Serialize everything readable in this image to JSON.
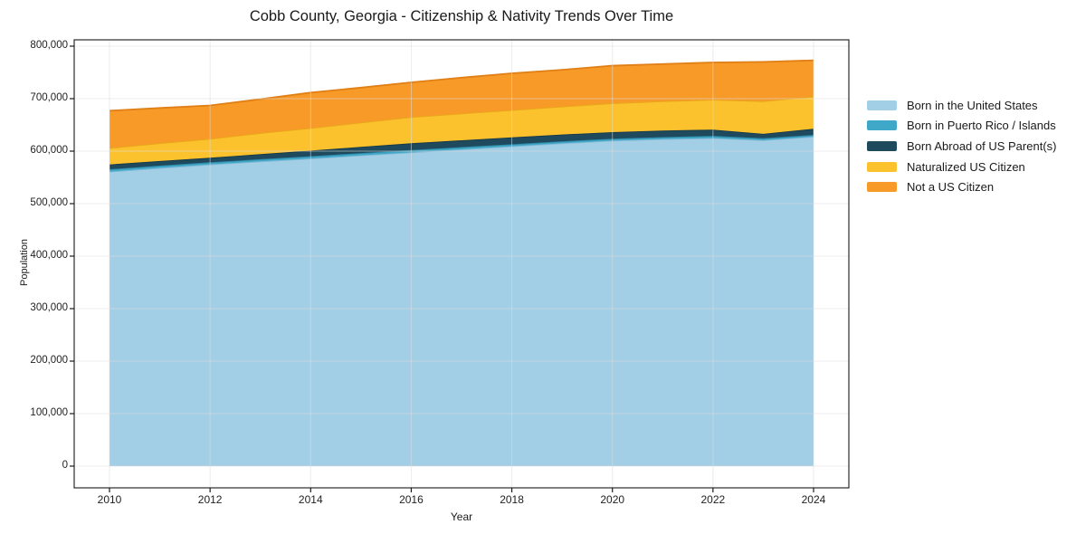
{
  "title": "Cobb County, Georgia - Citizenship & Nativity Trends Over Time",
  "chart_data": {
    "type": "area",
    "stacked": true,
    "title": "Cobb County, Georgia - Citizenship & Nativity Trends Over Time",
    "xlabel": "Year",
    "ylabel": "Population",
    "grid": true,
    "legend_position": "right",
    "x": [
      2010,
      2011,
      2012,
      2013,
      2014,
      2015,
      2016,
      2017,
      2018,
      2019,
      2020,
      2021,
      2022,
      2023,
      2024
    ],
    "x_ticks": [
      "2010",
      "2012",
      "2014",
      "2016",
      "2018",
      "2020",
      "2022",
      "2024"
    ],
    "x_tick_values": [
      2010,
      2012,
      2014,
      2016,
      2018,
      2020,
      2022,
      2024
    ],
    "y_ticks": [
      {
        "value": 0,
        "label": "0"
      },
      {
        "value": 100000,
        "label": "100,000"
      },
      {
        "value": 200000,
        "label": "200,000"
      },
      {
        "value": 300000,
        "label": "300,000"
      },
      {
        "value": 400000,
        "label": "400,000"
      },
      {
        "value": 500000,
        "label": "500,000"
      },
      {
        "value": 600000,
        "label": "600,000"
      },
      {
        "value": 700000,
        "label": "700,000"
      },
      {
        "value": 800000,
        "label": "800,000"
      }
    ],
    "xlim": [
      2009.3,
      2024.7
    ],
    "ylim": [
      0,
      800000
    ],
    "series": [
      {
        "name": "Born in the United States",
        "color": "#a3cfe6",
        "edge_color": "#82b9d6",
        "values": [
          561000,
          568000,
          574700,
          580500,
          586000,
          592000,
          597700,
          603500,
          609200,
          615000,
          620000,
          623000,
          625000,
          621000,
          627600
        ]
      },
      {
        "name": "Born in Puerto Rico / Islands",
        "color": "#3fa7c8",
        "edge_color": "#2f8aa8",
        "values": [
          4500,
          4400,
          4100,
          4200,
          4300,
          4400,
          4500,
          4200,
          4000,
          3800,
          3700,
          3800,
          4000,
          3500,
          3400
        ]
      },
      {
        "name": "Born Abroad of US Parent(s)",
        "color": "#1f4a5e",
        "edge_color": "#16394a",
        "values": [
          9100,
          8900,
          8600,
          9800,
          10700,
          11800,
          12800,
          13000,
          13200,
          12900,
          12600,
          12500,
          12000,
          8500,
          11700
        ]
      },
      {
        "name": "Naturalized US Citizen",
        "color": "#fcc22d",
        "edge_color": "#e8a81a",
        "values": [
          31400,
          33900,
          36100,
          40000,
          43000,
          46300,
          50000,
          51000,
          51800,
          53300,
          55000,
          55700,
          57000,
          62000,
          61300
        ]
      },
      {
        "name": "Not a US Citizen",
        "color": "#f89a28",
        "edge_color": "#e07f16",
        "values": [
          71000,
          67000,
          63500,
          64500,
          67500,
          66500,
          66000,
          68300,
          70100,
          70000,
          71500,
          71000,
          71000,
          75000,
          69000
        ]
      }
    ]
  },
  "colors": {
    "grid": "#dcdcdc",
    "plot_border": "#2b2b2b",
    "background": "#ffffff"
  }
}
